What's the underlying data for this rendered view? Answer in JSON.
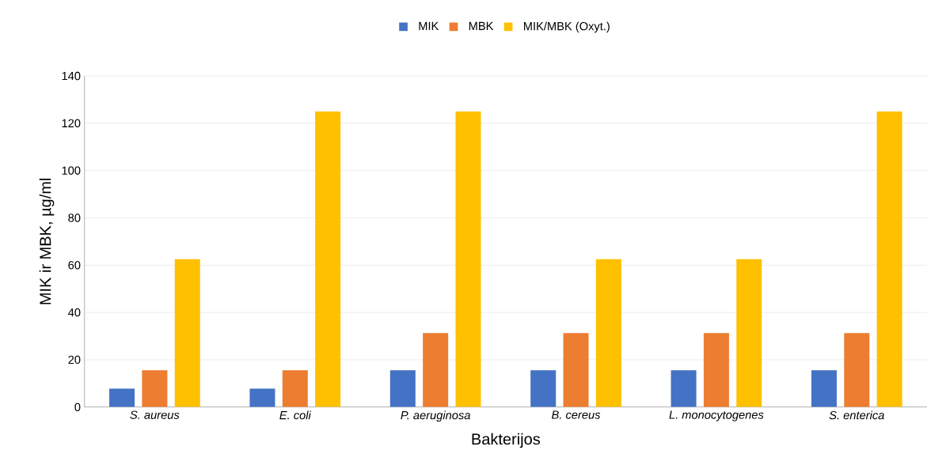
{
  "chart_data": {
    "type": "bar",
    "xlabel": "Bakterijos",
    "ylabel": "MIK ir MBK, µg/ml",
    "categories": [
      "S. aureus",
      "E. coli",
      "P. aeruginosa",
      "B. cereus",
      "L. monocytogenes",
      "S. enterica"
    ],
    "series": [
      {
        "name": "MIK",
        "color": "#4472c4",
        "values": [
          7.8,
          7.8,
          15.6,
          15.6,
          15.6,
          15.6
        ]
      },
      {
        "name": "MBK",
        "color": "#ed7d31",
        "values": [
          15.6,
          15.6,
          31.3,
          31.3,
          31.3,
          31.3
        ]
      },
      {
        "name": "MIK/MBK (Oxyt.)",
        "color": "#ffc000",
        "values": [
          62.5,
          125,
          125,
          62.5,
          62.5,
          125
        ]
      }
    ],
    "ylim": [
      0,
      140
    ],
    "yticks": [
      0,
      20,
      40,
      60,
      80,
      100,
      120,
      140
    ],
    "grid": "y",
    "legend": "top"
  }
}
